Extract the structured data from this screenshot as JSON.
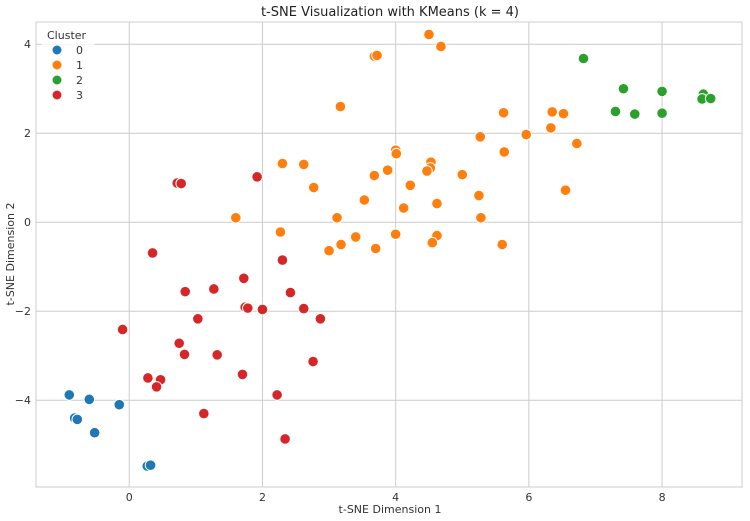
{
  "chart_data": {
    "type": "scatter",
    "title": "t-SNE Visualization with KMeans (k = 4)",
    "xlabel": "t-SNE Dimension 1",
    "ylabel": "t-SNE Dimension 2",
    "xlim": [
      -1.4,
      9.2
    ],
    "ylim": [
      -5.95,
      4.5
    ],
    "xticks": [
      0,
      2,
      4,
      6,
      8
    ],
    "yticks": [
      -4,
      -2,
      0,
      2,
      4
    ],
    "grid": true,
    "legend": {
      "title": "Cluster",
      "position": "top-left"
    },
    "series": [
      {
        "name": "0",
        "color": "#1f77b4",
        "points": [
          [
            -0.9,
            -3.88
          ],
          [
            -0.82,
            -4.4
          ],
          [
            -0.78,
            -4.43
          ],
          [
            -0.6,
            -3.98
          ],
          [
            -0.52,
            -4.73
          ],
          [
            -0.15,
            -4.1
          ],
          [
            0.27,
            -5.48
          ],
          [
            0.32,
            -5.46
          ]
        ]
      },
      {
        "name": "1",
        "color": "#ff7f0e",
        "points": [
          [
            4.5,
            4.22
          ],
          [
            4.68,
            3.95
          ],
          [
            3.68,
            3.73
          ],
          [
            3.72,
            3.75
          ],
          [
            3.17,
            2.6
          ],
          [
            5.62,
            2.46
          ],
          [
            6.35,
            2.48
          ],
          [
            6.52,
            2.44
          ],
          [
            6.33,
            2.12
          ],
          [
            5.27,
            1.92
          ],
          [
            5.96,
            1.97
          ],
          [
            6.72,
            1.77
          ],
          [
            4.0,
            1.62
          ],
          [
            4.01,
            1.54
          ],
          [
            5.63,
            1.58
          ],
          [
            4.53,
            1.35
          ],
          [
            2.3,
            1.32
          ],
          [
            2.62,
            1.3
          ],
          [
            4.52,
            1.22
          ],
          [
            4.47,
            1.15
          ],
          [
            3.68,
            1.05
          ],
          [
            3.88,
            1.17
          ],
          [
            5.0,
            1.07
          ],
          [
            4.22,
            0.83
          ],
          [
            2.77,
            0.78
          ],
          [
            6.55,
            0.72
          ],
          [
            5.25,
            0.6
          ],
          [
            3.53,
            0.5
          ],
          [
            4.12,
            0.32
          ],
          [
            4.62,
            0.42
          ],
          [
            1.6,
            0.1
          ],
          [
            3.12,
            0.1
          ],
          [
            5.28,
            0.1
          ],
          [
            2.27,
            -0.22
          ],
          [
            3.4,
            -0.33
          ],
          [
            4.0,
            -0.27
          ],
          [
            4.62,
            -0.3
          ],
          [
            3.18,
            -0.5
          ],
          [
            4.55,
            -0.46
          ],
          [
            3.7,
            -0.59
          ],
          [
            3.0,
            -0.64
          ],
          [
            5.6,
            -0.5
          ]
        ]
      },
      {
        "name": "2",
        "color": "#2ca02c",
        "points": [
          [
            6.82,
            3.68
          ],
          [
            7.42,
            3.0
          ],
          [
            8.0,
            2.94
          ],
          [
            7.3,
            2.49
          ],
          [
            7.59,
            2.43
          ],
          [
            8.0,
            2.45
          ],
          [
            8.62,
            2.88
          ],
          [
            8.6,
            2.77
          ],
          [
            8.73,
            2.78
          ]
        ]
      },
      {
        "name": "3",
        "color": "#d62728",
        "points": [
          [
            0.72,
            0.88
          ],
          [
            0.78,
            0.87
          ],
          [
            1.92,
            1.02
          ],
          [
            0.35,
            -0.69
          ],
          [
            1.72,
            -1.26
          ],
          [
            2.3,
            -0.85
          ],
          [
            0.84,
            -1.56
          ],
          [
            1.27,
            -1.5
          ],
          [
            2.42,
            -1.58
          ],
          [
            1.74,
            -1.91
          ],
          [
            1.78,
            -1.93
          ],
          [
            2.0,
            -1.96
          ],
          [
            2.62,
            -1.94
          ],
          [
            1.03,
            -2.17
          ],
          [
            2.87,
            -2.17
          ],
          [
            -0.1,
            -2.41
          ],
          [
            0.75,
            -2.72
          ],
          [
            0.83,
            -2.97
          ],
          [
            1.32,
            -2.98
          ],
          [
            2.76,
            -3.13
          ],
          [
            1.7,
            -3.42
          ],
          [
            0.28,
            -3.5
          ],
          [
            0.47,
            -3.54
          ],
          [
            0.41,
            -3.7
          ],
          [
            2.22,
            -3.88
          ],
          [
            1.12,
            -4.3
          ],
          [
            2.34,
            -4.87
          ]
        ]
      }
    ]
  }
}
